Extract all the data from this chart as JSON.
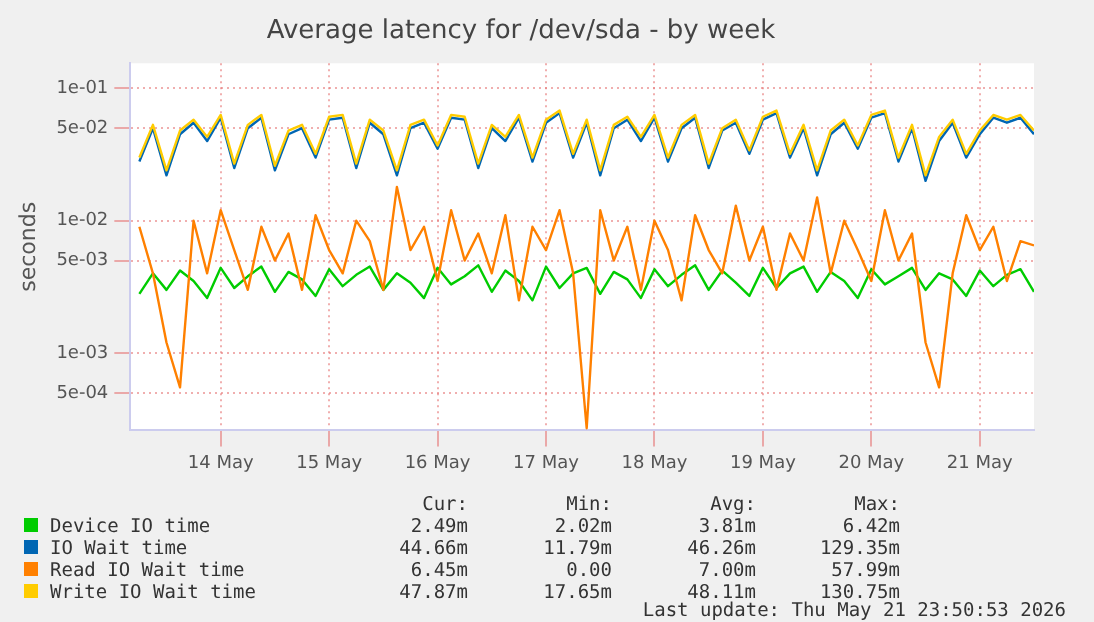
{
  "chart_data": {
    "type": "line",
    "title": "Average latency for /dev/sda - by week",
    "ylabel": "seconds",
    "log": "y",
    "grid": true,
    "legend": "bottom",
    "marker": "none",
    "line_style": "solid",
    "ylim": [
      0.00026,
      0.155
    ],
    "yticks": [
      {
        "value": 0.1,
        "label": "1e-01"
      },
      {
        "value": 0.05,
        "label": "5e-02"
      },
      {
        "value": 0.01,
        "label": "1e-02"
      },
      {
        "value": 0.005,
        "label": "5e-03"
      },
      {
        "value": 0.001,
        "label": "1e-03"
      },
      {
        "value": 0.0005,
        "label": "5e-04"
      }
    ],
    "xlim": [
      "2026-05-13T16:00",
      "2026-05-22T00:00"
    ],
    "xticks": [
      {
        "value": "2026-05-14T12:00",
        "label": "14 May"
      },
      {
        "value": "2026-05-15T12:00",
        "label": "15 May"
      },
      {
        "value": "2026-05-16T12:00",
        "label": "16 May"
      },
      {
        "value": "2026-05-17T12:00",
        "label": "17 May"
      },
      {
        "value": "2026-05-18T12:00",
        "label": "18 May"
      },
      {
        "value": "2026-05-19T12:00",
        "label": "19 May"
      },
      {
        "value": "2026-05-20T12:00",
        "label": "20 May"
      },
      {
        "value": "2026-05-21T12:00",
        "label": "21 May"
      }
    ],
    "x": [
      "2026-05-13T18:00",
      "2026-05-13T21:00",
      "2026-05-14T00:00",
      "2026-05-14T03:00",
      "2026-05-14T06:00",
      "2026-05-14T09:00",
      "2026-05-14T12:00",
      "2026-05-14T15:00",
      "2026-05-14T18:00",
      "2026-05-14T21:00",
      "2026-05-15T00:00",
      "2026-05-15T03:00",
      "2026-05-15T06:00",
      "2026-05-15T09:00",
      "2026-05-15T12:00",
      "2026-05-15T15:00",
      "2026-05-15T18:00",
      "2026-05-15T21:00",
      "2026-05-16T00:00",
      "2026-05-16T03:00",
      "2026-05-16T06:00",
      "2026-05-16T09:00",
      "2026-05-16T12:00",
      "2026-05-16T15:00",
      "2026-05-16T18:00",
      "2026-05-16T21:00",
      "2026-05-17T00:00",
      "2026-05-17T03:00",
      "2026-05-17T06:00",
      "2026-05-17T09:00",
      "2026-05-17T12:00",
      "2026-05-17T15:00",
      "2026-05-17T18:00",
      "2026-05-17T21:00",
      "2026-05-18T00:00",
      "2026-05-18T03:00",
      "2026-05-18T06:00",
      "2026-05-18T09:00",
      "2026-05-18T12:00",
      "2026-05-18T15:00",
      "2026-05-18T18:00",
      "2026-05-18T21:00",
      "2026-05-19T00:00",
      "2026-05-19T03:00",
      "2026-05-19T06:00",
      "2026-05-19T09:00",
      "2026-05-19T12:00",
      "2026-05-19T15:00",
      "2026-05-19T18:00",
      "2026-05-19T21:00",
      "2026-05-20T00:00",
      "2026-05-20T03:00",
      "2026-05-20T06:00",
      "2026-05-20T09:00",
      "2026-05-20T12:00",
      "2026-05-20T15:00",
      "2026-05-20T18:00",
      "2026-05-20T21:00",
      "2026-05-21T00:00",
      "2026-05-21T03:00",
      "2026-05-21T06:00",
      "2026-05-21T09:00",
      "2026-05-21T12:00",
      "2026-05-21T15:00",
      "2026-05-21T18:00",
      "2026-05-21T21:00",
      "2026-05-22T00:00"
    ],
    "series": [
      {
        "name": "Device IO time",
        "color": "#00cc00",
        "values": [
          0.0028,
          0.004,
          0.003,
          0.0042,
          0.0035,
          0.0026,
          0.0044,
          0.0031,
          0.0038,
          0.0045,
          0.0029,
          0.0041,
          0.0036,
          0.0027,
          0.0043,
          0.0032,
          0.0039,
          0.0045,
          0.003,
          0.004,
          0.0034,
          0.0026,
          0.0044,
          0.0033,
          0.0038,
          0.0046,
          0.0029,
          0.0042,
          0.0035,
          0.0025,
          0.0045,
          0.0031,
          0.004,
          0.0044,
          0.0028,
          0.0041,
          0.0036,
          0.0026,
          0.0043,
          0.0032,
          0.0039,
          0.0046,
          0.003,
          0.0042,
          0.0034,
          0.0027,
          0.0044,
          0.0031,
          0.004,
          0.0045,
          0.0029,
          0.0041,
          0.0035,
          0.0026,
          0.0043,
          0.0033,
          0.0038,
          0.0044,
          0.003,
          0.004,
          0.0036,
          0.0027,
          0.0042,
          0.0032,
          0.0039,
          0.0043,
          0.0029
        ]
      },
      {
        "name": "IO Wait time",
        "color": "#0066b3",
        "values": [
          0.028,
          0.05,
          0.022,
          0.045,
          0.055,
          0.04,
          0.06,
          0.025,
          0.05,
          0.06,
          0.024,
          0.045,
          0.05,
          0.03,
          0.058,
          0.06,
          0.025,
          0.055,
          0.045,
          0.022,
          0.05,
          0.055,
          0.035,
          0.06,
          0.058,
          0.025,
          0.05,
          0.04,
          0.06,
          0.028,
          0.055,
          0.065,
          0.03,
          0.055,
          0.022,
          0.05,
          0.058,
          0.04,
          0.06,
          0.028,
          0.05,
          0.06,
          0.025,
          0.048,
          0.055,
          0.032,
          0.058,
          0.065,
          0.03,
          0.05,
          0.022,
          0.045,
          0.055,
          0.035,
          0.06,
          0.065,
          0.028,
          0.05,
          0.02,
          0.04,
          0.055,
          0.03,
          0.045,
          0.06,
          0.055,
          0.06,
          0.045
        ]
      },
      {
        "name": "Read IO Wait time",
        "color": "#ff8000",
        "values": [
          0.009,
          0.004,
          0.0012,
          0.00055,
          0.01,
          0.004,
          0.012,
          0.006,
          0.003,
          0.009,
          0.005,
          0.008,
          0.003,
          0.011,
          0.006,
          0.004,
          0.01,
          0.007,
          0.003,
          0.018,
          0.006,
          0.009,
          0.0035,
          0.012,
          0.005,
          0.008,
          0.004,
          0.011,
          0.0025,
          0.009,
          0.006,
          0.012,
          0.004,
          0.00027,
          0.012,
          0.005,
          0.009,
          0.003,
          0.01,
          0.006,
          0.0025,
          0.011,
          0.006,
          0.004,
          0.013,
          0.005,
          0.009,
          0.003,
          0.008,
          0.005,
          0.015,
          0.004,
          0.01,
          0.006,
          0.0035,
          0.012,
          0.005,
          0.008,
          0.0012,
          0.00055,
          0.004,
          0.011,
          0.006,
          0.009,
          0.0035,
          0.007,
          0.0065
        ]
      },
      {
        "name": "Write IO Wait time",
        "color": "#ffcc00",
        "values": [
          0.03,
          0.053,
          0.024,
          0.048,
          0.058,
          0.043,
          0.063,
          0.027,
          0.053,
          0.063,
          0.026,
          0.048,
          0.053,
          0.032,
          0.061,
          0.063,
          0.027,
          0.058,
          0.048,
          0.024,
          0.053,
          0.058,
          0.037,
          0.063,
          0.061,
          0.027,
          0.053,
          0.043,
          0.063,
          0.03,
          0.058,
          0.068,
          0.032,
          0.058,
          0.024,
          0.053,
          0.061,
          0.043,
          0.063,
          0.03,
          0.053,
          0.063,
          0.027,
          0.05,
          0.058,
          0.034,
          0.061,
          0.068,
          0.032,
          0.053,
          0.024,
          0.048,
          0.058,
          0.037,
          0.063,
          0.068,
          0.03,
          0.053,
          0.022,
          0.043,
          0.058,
          0.032,
          0.048,
          0.063,
          0.058,
          0.063,
          0.048
        ]
      }
    ],
    "annotations": [
      "Cur:",
      "Min:",
      "Avg:",
      "Max:",
      "2.49m",
      "2.02m",
      "3.81m",
      "6.42m",
      "44.66m",
      "11.79m",
      "46.26m",
      "129.35m",
      "6.45m",
      "0.00",
      "7.00m",
      "57.99m",
      "47.87m",
      "17.65m",
      "48.11m",
      "130.75m",
      "Last update: Thu May 21 23:50:53 2026"
    ]
  }
}
